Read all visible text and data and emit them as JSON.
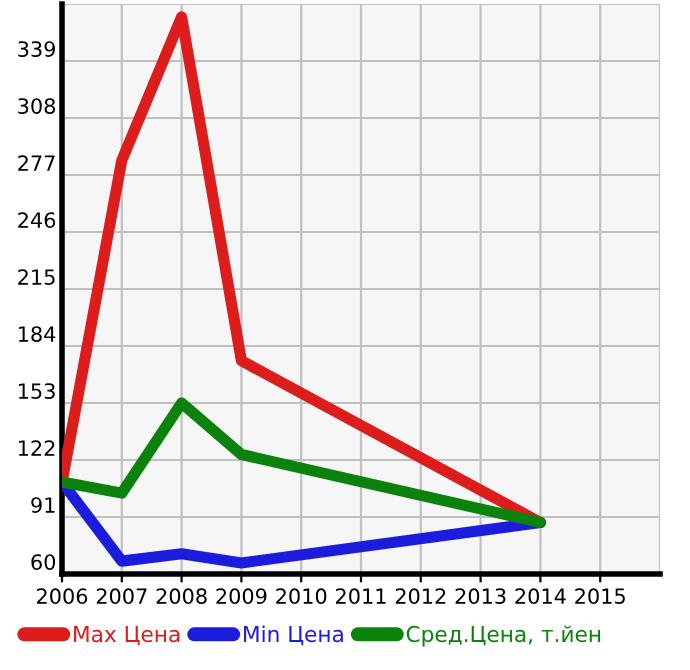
{
  "chart_data": {
    "type": "line",
    "x": [
      2006,
      2007,
      2008,
      2009,
      2014
    ],
    "series": [
      {
        "name": "Max Цена",
        "color": "#dd1c1c",
        "values": [
          110,
          285,
          363,
          176,
          88
        ]
      },
      {
        "name": "Min Цена",
        "color": "#1c1cdd",
        "values": [
          110,
          67,
          71,
          66,
          88
        ]
      },
      {
        "name": "Сред.Цена, т.йен",
        "color": "#0b820b",
        "values": [
          110,
          104,
          153,
          125,
          88
        ]
      }
    ],
    "xlim": [
      2006,
      2016
    ],
    "xticks": [
      2006,
      2007,
      2008,
      2009,
      2010,
      2011,
      2012,
      2013,
      2014,
      2015
    ],
    "ylim": [
      60,
      370
    ],
    "yticks": [
      60,
      91,
      122,
      153,
      184,
      215,
      246,
      277,
      308,
      339
    ],
    "grid": true,
    "legend": "bottom",
    "marker": "none",
    "line_style": "solid"
  }
}
